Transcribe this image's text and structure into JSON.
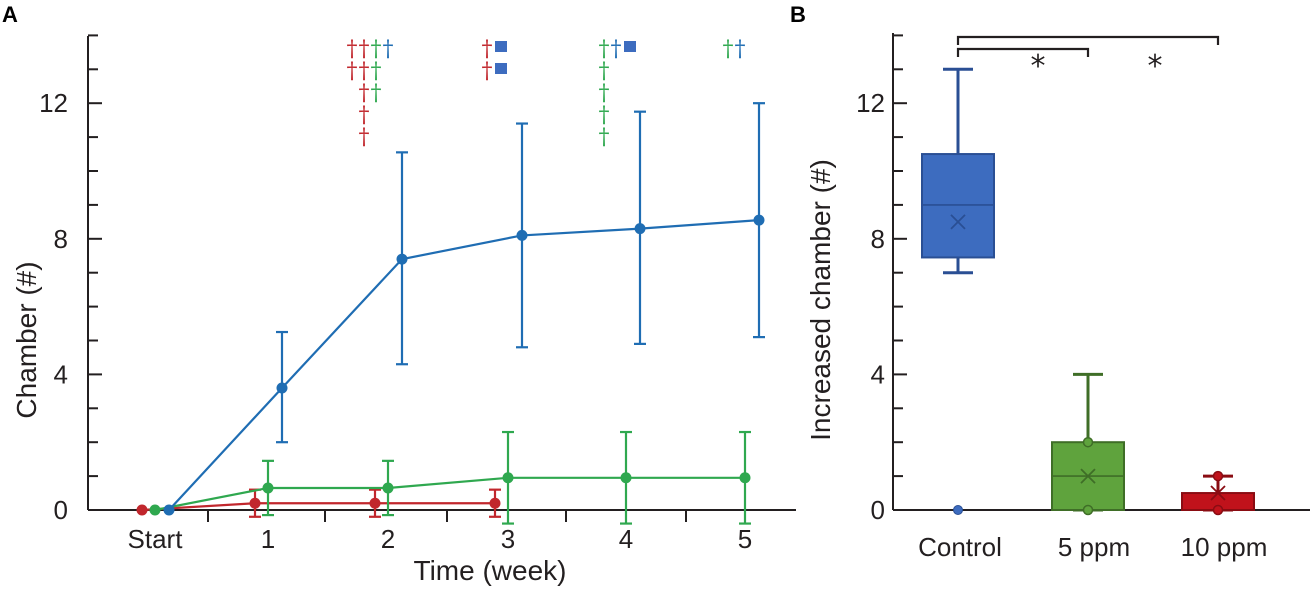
{
  "panels": {
    "a_label": "A",
    "b_label": "B"
  },
  "colors": {
    "control": "#1f6db3",
    "ppm5": "#2fa84f",
    "ppm10": "#c1272d",
    "axis": "#231f20",
    "box_control": "#3d6cbf",
    "box_5ppm": "#5fa33d",
    "box_10ppm": "#c0121b"
  },
  "symbols": {
    "death": "†",
    "block": "■"
  },
  "chart_data": [
    {
      "type": "line",
      "panel": "A",
      "title": "",
      "xlabel": "Time (week)",
      "ylabel": "Chamber (#)",
      "categories": [
        "Start",
        "1",
        "2",
        "3",
        "4",
        "5"
      ],
      "x": [
        0,
        1,
        2,
        3,
        4,
        5
      ],
      "ylim": [
        0,
        14
      ],
      "yticks": [
        0,
        4,
        8,
        12
      ],
      "series": [
        {
          "name": "Control",
          "color": "#1f6db3",
          "x": [
            0,
            1,
            2,
            3,
            4,
            5
          ],
          "values": [
            0,
            3.6,
            7.4,
            8.1,
            8.3,
            8.55
          ],
          "err_low": [
            0,
            2.0,
            4.3,
            4.8,
            4.9,
            5.1
          ],
          "err_high": [
            0,
            5.25,
            10.55,
            11.4,
            11.75,
            12.0
          ]
        },
        {
          "name": "5 ppm",
          "color": "#2fa84f",
          "x": [
            0,
            1,
            2,
            3,
            4,
            5
          ],
          "values": [
            0,
            0.65,
            0.65,
            0.95,
            0.95,
            0.95
          ],
          "err_low": [
            0,
            -0.15,
            -0.15,
            -0.4,
            -0.4,
            -0.4
          ],
          "err_high": [
            0,
            1.45,
            1.45,
            2.3,
            2.3,
            2.3
          ]
        },
        {
          "name": "10 ppm",
          "color": "#c1272d",
          "x": [
            0,
            1,
            2,
            3
          ],
          "values": [
            0,
            0.2,
            0.2,
            0.2
          ],
          "err_low": [
            0,
            -0.2,
            -0.2,
            -0.2
          ],
          "err_high": [
            0,
            0.6,
            0.6,
            0.6
          ]
        }
      ],
      "annotations": {
        "week2": {
          "columns": [
            {
              "color": "#c1272d",
              "count": 2
            },
            {
              "color": "#c1272d",
              "count": 5
            },
            {
              "color": "#2fa84f",
              "count": 3
            },
            {
              "color": "#1f6db3",
              "count": 1
            }
          ]
        },
        "week3": {
          "columns": [
            {
              "color": "#c1272d",
              "count": 2,
              "kind": "death"
            },
            {
              "color": "#3d6cbf",
              "count": 2,
              "kind": "block"
            }
          ]
        },
        "week4": {
          "columns": [
            {
              "color": "#2fa84f",
              "count": 5,
              "kind": "death"
            },
            {
              "color": "#1f6db3",
              "count": 1,
              "kind": "death"
            },
            {
              "color": "#3d6cbf",
              "count": 1,
              "kind": "block"
            }
          ]
        },
        "week5": {
          "columns": [
            {
              "color": "#2fa84f",
              "count": 1,
              "kind": "death"
            },
            {
              "color": "#1f6db3",
              "count": 1,
              "kind": "death"
            }
          ]
        }
      }
    },
    {
      "type": "box",
      "panel": "B",
      "title": "",
      "xlabel": "",
      "ylabel": "Increased chamber (#)",
      "categories": [
        "Control",
        "5 ppm",
        "10 ppm"
      ],
      "ylim": [
        0,
        14
      ],
      "yticks": [
        0,
        4,
        8,
        12
      ],
      "boxes": [
        {
          "name": "Control",
          "color": "#3d6cbf",
          "min": 7,
          "q1": 7.45,
          "median": 9.0,
          "q3": 10.5,
          "max": 13,
          "mean": 8.5,
          "outliers": [
            0
          ]
        },
        {
          "name": "5 ppm",
          "color": "#5fa33d",
          "min": 0,
          "q1": 0,
          "median": 1.0,
          "q3": 2.0,
          "max": 4,
          "mean": 1.0,
          "points": [
            0,
            2
          ]
        },
        {
          "name": "10 ppm",
          "color": "#c0121b",
          "min": 0,
          "q1": 0,
          "median": 0,
          "q3": 0.5,
          "max": 1,
          "mean": 0.5,
          "points": [
            0,
            1
          ]
        }
      ],
      "significance": [
        {
          "from": "Control",
          "to": "5 ppm",
          "label": "*"
        },
        {
          "from": "Control",
          "to": "10 ppm",
          "label": "*"
        }
      ]
    }
  ]
}
